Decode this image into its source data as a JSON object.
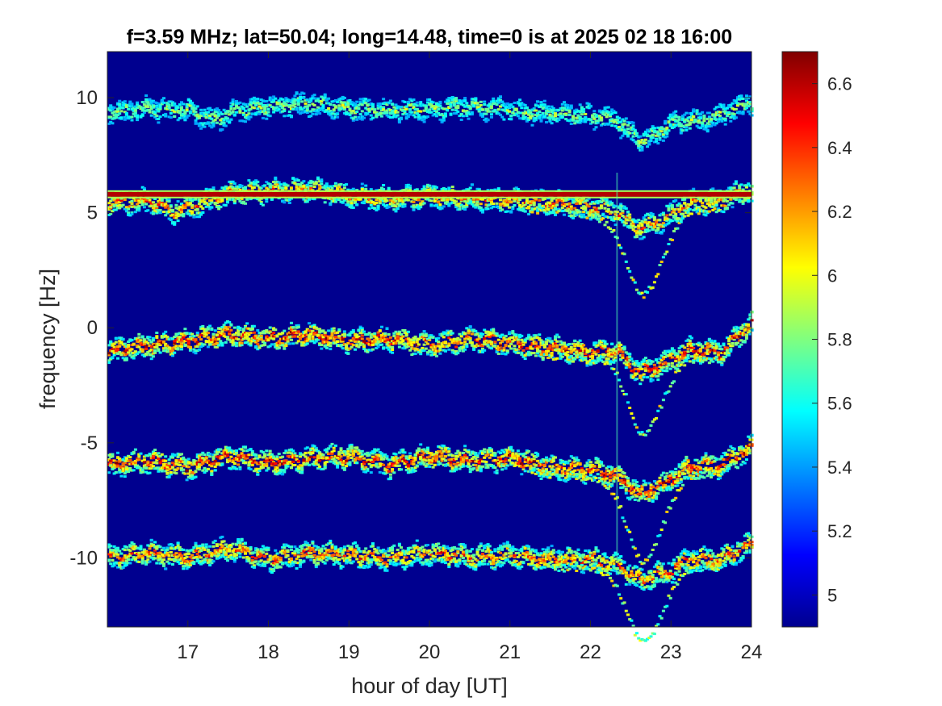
{
  "chart_data": {
    "type": "heatmap",
    "title": "f=3.59 MHz;  lat=50.04; long=14.48, time=0 is at 2025 02 18 16:00",
    "xlabel": "hour of day [UT]",
    "ylabel": "frequency [Hz]",
    "xlim": [
      16,
      24
    ],
    "ylim": [
      -13,
      12
    ],
    "xticks": [
      17,
      18,
      19,
      20,
      21,
      22,
      23,
      24
    ],
    "yticks": [
      -10,
      -5,
      0,
      5,
      10
    ],
    "colorbar": {
      "colormap": "jet",
      "clim": [
        4.9,
        6.7
      ],
      "ticks": [
        5,
        5.2,
        5.4,
        5.6,
        5.8,
        6,
        6.2,
        6.4,
        6.6
      ]
    },
    "background_color": "#00008f",
    "steady_line": {
      "frequency": 5.8,
      "label": ""
    },
    "series": [
      {
        "base": 9.5,
        "intensity": 0.55,
        "dip_depth": 1.4,
        "echo_depth": 0,
        "points": [
          [
            16.0,
            9.3
          ],
          [
            16.5,
            9.5
          ],
          [
            17.0,
            9.4
          ],
          [
            17.3,
            9.0
          ],
          [
            17.6,
            9.4
          ],
          [
            18.0,
            9.6
          ],
          [
            18.5,
            9.7
          ],
          [
            19.0,
            9.5
          ],
          [
            19.5,
            9.4
          ],
          [
            20.0,
            9.5
          ],
          [
            20.5,
            9.6
          ],
          [
            21.0,
            9.4
          ],
          [
            21.5,
            9.3
          ],
          [
            22.0,
            9.2
          ],
          [
            22.3,
            9.0
          ],
          [
            22.6,
            8.1
          ],
          [
            22.8,
            8.4
          ],
          [
            23.0,
            8.9
          ],
          [
            23.5,
            9.1
          ],
          [
            24.0,
            9.8
          ]
        ]
      },
      {
        "base": 5.5,
        "intensity": 0.85,
        "dip_depth": 1.3,
        "echo_depth": 2.6,
        "points": [
          [
            16.0,
            5.4
          ],
          [
            16.5,
            5.5
          ],
          [
            16.8,
            5.0
          ],
          [
            17.0,
            5.2
          ],
          [
            17.5,
            5.8
          ],
          [
            18.0,
            5.9
          ],
          [
            18.5,
            6.0
          ],
          [
            19.0,
            5.7
          ],
          [
            19.5,
            5.6
          ],
          [
            20.0,
            5.7
          ],
          [
            20.5,
            5.6
          ],
          [
            21.0,
            5.5
          ],
          [
            21.5,
            5.4
          ],
          [
            22.0,
            5.2
          ],
          [
            22.3,
            5.0
          ],
          [
            22.6,
            4.3
          ],
          [
            22.9,
            4.7
          ],
          [
            23.2,
            5.4
          ],
          [
            23.6,
            5.5
          ],
          [
            24.0,
            6.0
          ]
        ]
      },
      {
        "base": -0.8,
        "intensity": 1.0,
        "dip_depth": 1.2,
        "echo_depth": 2.3,
        "points": [
          [
            16.0,
            -1.0
          ],
          [
            16.5,
            -0.8
          ],
          [
            17.0,
            -0.6
          ],
          [
            17.5,
            -0.3
          ],
          [
            18.0,
            -0.5
          ],
          [
            18.5,
            -0.3
          ],
          [
            19.0,
            -0.6
          ],
          [
            19.5,
            -0.5
          ],
          [
            20.0,
            -0.8
          ],
          [
            20.5,
            -0.5
          ],
          [
            21.0,
            -0.7
          ],
          [
            21.5,
            -0.9
          ],
          [
            22.0,
            -1.1
          ],
          [
            22.3,
            -1.0
          ],
          [
            22.6,
            -2.0
          ],
          [
            22.9,
            -1.6
          ],
          [
            23.2,
            -1.0
          ],
          [
            23.6,
            -1.1
          ],
          [
            24.0,
            0.2
          ]
        ]
      },
      {
        "base": -6.0,
        "intensity": 1.0,
        "dip_depth": 1.3,
        "echo_depth": 2.6,
        "points": [
          [
            16.0,
            -6.0
          ],
          [
            16.5,
            -5.8
          ],
          [
            17.0,
            -6.1
          ],
          [
            17.5,
            -5.6
          ],
          [
            18.0,
            -5.9
          ],
          [
            18.5,
            -5.7
          ],
          [
            19.0,
            -5.6
          ],
          [
            19.5,
            -6.0
          ],
          [
            20.0,
            -5.6
          ],
          [
            20.5,
            -5.8
          ],
          [
            21.0,
            -5.7
          ],
          [
            21.5,
            -6.1
          ],
          [
            22.0,
            -6.2
          ],
          [
            22.3,
            -6.4
          ],
          [
            22.6,
            -7.3
          ],
          [
            22.9,
            -6.8
          ],
          [
            23.2,
            -6.1
          ],
          [
            23.6,
            -6.0
          ],
          [
            24.0,
            -5.2
          ]
        ]
      },
      {
        "base": -10.0,
        "intensity": 0.9,
        "dip_depth": 1.0,
        "echo_depth": 2.4,
        "points": [
          [
            16.0,
            -10.0
          ],
          [
            16.5,
            -9.8
          ],
          [
            17.0,
            -10.0
          ],
          [
            17.5,
            -9.6
          ],
          [
            18.0,
            -10.1
          ],
          [
            18.5,
            -9.8
          ],
          [
            19.0,
            -9.9
          ],
          [
            19.5,
            -10.0
          ],
          [
            20.0,
            -9.8
          ],
          [
            20.5,
            -10.0
          ],
          [
            21.0,
            -9.9
          ],
          [
            21.5,
            -10.1
          ],
          [
            22.0,
            -10.1
          ],
          [
            22.3,
            -10.3
          ],
          [
            22.6,
            -11.0
          ],
          [
            22.9,
            -10.7
          ],
          [
            23.2,
            -10.1
          ],
          [
            23.6,
            -10.1
          ],
          [
            24.0,
            -9.4
          ]
        ]
      }
    ]
  }
}
